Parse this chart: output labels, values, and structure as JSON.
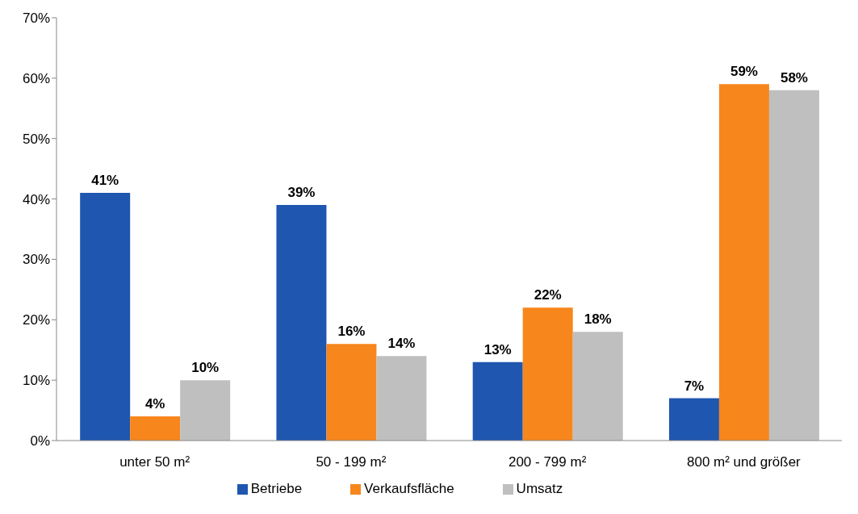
{
  "chart_data": {
    "type": "bar",
    "categories": [
      "unter 50 m²",
      "50 - 199 m²",
      "200 - 799 m²",
      "800 m² und größer"
    ],
    "series": [
      {
        "name": "Betriebe",
        "color": "#1f56b0",
        "values": [
          41,
          39,
          13,
          7
        ],
        "value_labels": [
          "41%",
          "39%",
          "13%",
          "7%"
        ]
      },
      {
        "name": "Verkaufsfläche",
        "color": "#f7861c",
        "values": [
          4,
          16,
          22,
          59
        ],
        "value_labels": [
          "4%",
          "16%",
          "22%",
          "59%"
        ]
      },
      {
        "name": "Umsatz",
        "color": "#bfbfbf",
        "values": [
          10,
          14,
          18,
          58
        ],
        "value_labels": [
          "10%",
          "14%",
          "18%",
          "58%"
        ]
      }
    ],
    "ylim": [
      0,
      70
    ],
    "yticks": [
      {
        "value": 0,
        "label": "0%"
      },
      {
        "value": 10,
        "label": "10%"
      },
      {
        "value": 20,
        "label": "20%"
      },
      {
        "value": 30,
        "label": "30%"
      },
      {
        "value": 40,
        "label": "40%"
      },
      {
        "value": 50,
        "label": "50%"
      },
      {
        "value": 60,
        "label": "60%"
      },
      {
        "value": 70,
        "label": "70%"
      }
    ],
    "grid": false,
    "legend": "bottom"
  }
}
